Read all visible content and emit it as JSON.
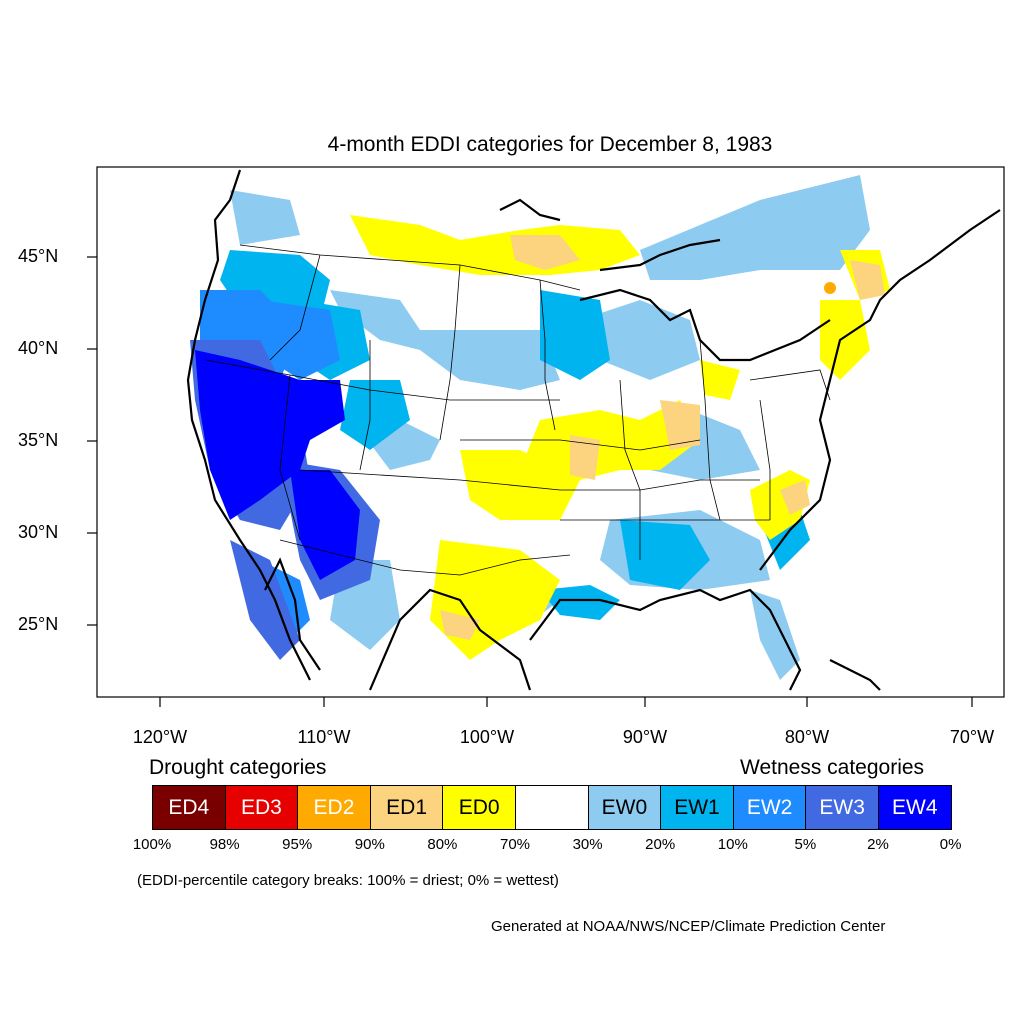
{
  "title": "4-month EDDI categories for December 8, 1983",
  "lat_labels": [
    "45°N",
    "40°N",
    "35°N",
    "30°N",
    "25°N"
  ],
  "lon_labels": [
    "120°W",
    "110°W",
    "100°W",
    "90°W",
    "80°W",
    "70°W"
  ],
  "legend": {
    "drought_heading": "Drought categories",
    "wetness_heading": "Wetness categories",
    "categories": [
      {
        "label": "ED4",
        "color": "#7a0000",
        "text_color": "#ffffff"
      },
      {
        "label": "ED3",
        "color": "#e60000",
        "text_color": "#ffffff"
      },
      {
        "label": "ED2",
        "color": "#ffaa00",
        "text_color": "#ffffff"
      },
      {
        "label": "ED1",
        "color": "#fcd37f",
        "text_color": "#000000"
      },
      {
        "label": "ED0",
        "color": "#ffff00",
        "text_color": "#000000"
      },
      {
        "label": "",
        "color": "#ffffff",
        "text_color": "#000000"
      },
      {
        "label": "EW0",
        "color": "#8ecbf0",
        "text_color": "#000000"
      },
      {
        "label": "EW1",
        "color": "#00b4f0",
        "text_color": "#000000"
      },
      {
        "label": "EW2",
        "color": "#1e8cff",
        "text_color": "#ffffff"
      },
      {
        "label": "EW3",
        "color": "#4169e1",
        "text_color": "#ffffff"
      },
      {
        "label": "EW4",
        "color": "#0000ff",
        "text_color": "#ffffff"
      }
    ],
    "breaks": [
      "100%",
      "98%",
      "95%",
      "90%",
      "80%",
      "70%",
      "30%",
      "20%",
      "10%",
      "5%",
      "2%",
      "0%"
    ]
  },
  "note": "(EDDI-percentile category breaks: 100% = driest; 0% = wettest)",
  "credit": "Generated at NOAA/NWS/NCEP/Climate Prediction Center"
}
